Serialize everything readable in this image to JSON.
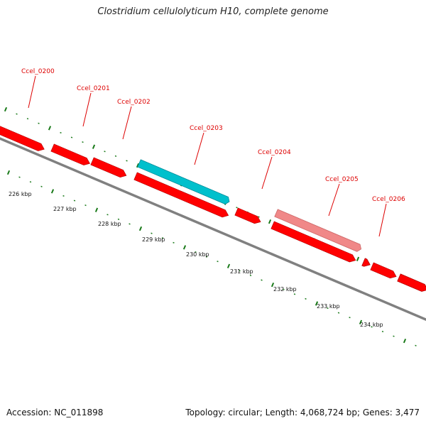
{
  "title": "Clostridium cellulolyticum H10, complete genome",
  "footer": {
    "accession": "Accession: NC_011898",
    "summary": "Topology: circular; Length: 4,068,724 bp; Genes: 3,477"
  },
  "colors": {
    "gene": "#ff0000",
    "gene_highlight": "#00c0cc",
    "gene_faded": "#f08888",
    "backbone": "#808080",
    "label": "#dd0000",
    "tick": "#1a7a1a"
  },
  "genes": [
    {
      "id": "Ccel_0200",
      "label": "Ccel_0200",
      "style": "normal"
    },
    {
      "id": "Ccel_0201",
      "label": "Ccel_0201",
      "style": "normal"
    },
    {
      "id": "Ccel_0202",
      "label": "Ccel_0202",
      "style": "normal"
    },
    {
      "id": "Ccel_0203",
      "label": "Ccel_0203",
      "style": "highlight"
    },
    {
      "id": "Ccel_0204",
      "label": "Ccel_0204",
      "style": "normal"
    },
    {
      "id": "Ccel_0205",
      "label": "Ccel_0205",
      "style": "faded"
    },
    {
      "id": "Ccel_0206",
      "label": "Ccel_0206",
      "style": "normal"
    }
  ],
  "scale_labels": [
    "226 kbp",
    "227 kbp",
    "228 kbp",
    "229 kbp",
    "230 kbp",
    "231 kbp",
    "232 kbp",
    "233 kbp",
    "234 kbp"
  ]
}
